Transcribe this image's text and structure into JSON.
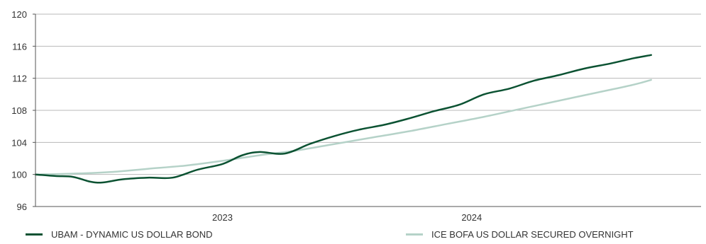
{
  "chart_data": {
    "type": "line",
    "title": "",
    "xlabel": "",
    "ylabel": "",
    "ylim": [
      96,
      120
    ],
    "yticks": [
      "96",
      "100",
      "104",
      "108",
      "112",
      "116",
      "120"
    ],
    "xtick_labels": [
      {
        "label": "2023",
        "x": 2023.0
      },
      {
        "label": "2024",
        "x": 2024.0
      }
    ],
    "xlim": [
      2022.25,
      2024.92
    ],
    "grid": "horizontal",
    "legend_position": "bottom",
    "series": [
      {
        "name": "UBAM - DYNAMIC US DOLLAR BOND",
        "color": "#0b5232",
        "points": [
          [
            2022.25,
            100.0
          ],
          [
            2022.33,
            99.8
          ],
          [
            2022.4,
            99.7
          ],
          [
            2022.47,
            99.1
          ],
          [
            2022.52,
            99.0
          ],
          [
            2022.6,
            99.4
          ],
          [
            2022.7,
            99.6
          ],
          [
            2022.8,
            99.6
          ],
          [
            2022.9,
            100.6
          ],
          [
            2023.0,
            101.3
          ],
          [
            2023.08,
            102.4
          ],
          [
            2023.15,
            102.8
          ],
          [
            2023.25,
            102.6
          ],
          [
            2023.35,
            103.8
          ],
          [
            2023.45,
            104.8
          ],
          [
            2023.55,
            105.6
          ],
          [
            2023.65,
            106.2
          ],
          [
            2023.75,
            107.0
          ],
          [
            2023.85,
            107.9
          ],
          [
            2023.95,
            108.7
          ],
          [
            2024.05,
            110.0
          ],
          [
            2024.15,
            110.7
          ],
          [
            2024.25,
            111.7
          ],
          [
            2024.35,
            112.4
          ],
          [
            2024.45,
            113.2
          ],
          [
            2024.55,
            113.8
          ],
          [
            2024.65,
            114.5
          ],
          [
            2024.72,
            114.9
          ]
        ]
      },
      {
        "name": "ICE BOFA US DOLLAR SECURED OVERNIGHT",
        "color": "#b5d2c8",
        "points": [
          [
            2022.25,
            100.0
          ],
          [
            2022.4,
            100.1
          ],
          [
            2022.55,
            100.3
          ],
          [
            2022.7,
            100.7
          ],
          [
            2022.85,
            101.1
          ],
          [
            2023.0,
            101.7
          ],
          [
            2023.15,
            102.4
          ],
          [
            2023.3,
            103.0
          ],
          [
            2023.45,
            103.8
          ],
          [
            2023.6,
            104.6
          ],
          [
            2023.75,
            105.4
          ],
          [
            2023.9,
            106.3
          ],
          [
            2024.05,
            107.2
          ],
          [
            2024.2,
            108.2
          ],
          [
            2024.35,
            109.2
          ],
          [
            2024.5,
            110.2
          ],
          [
            2024.65,
            111.2
          ],
          [
            2024.72,
            111.8
          ]
        ]
      }
    ]
  }
}
